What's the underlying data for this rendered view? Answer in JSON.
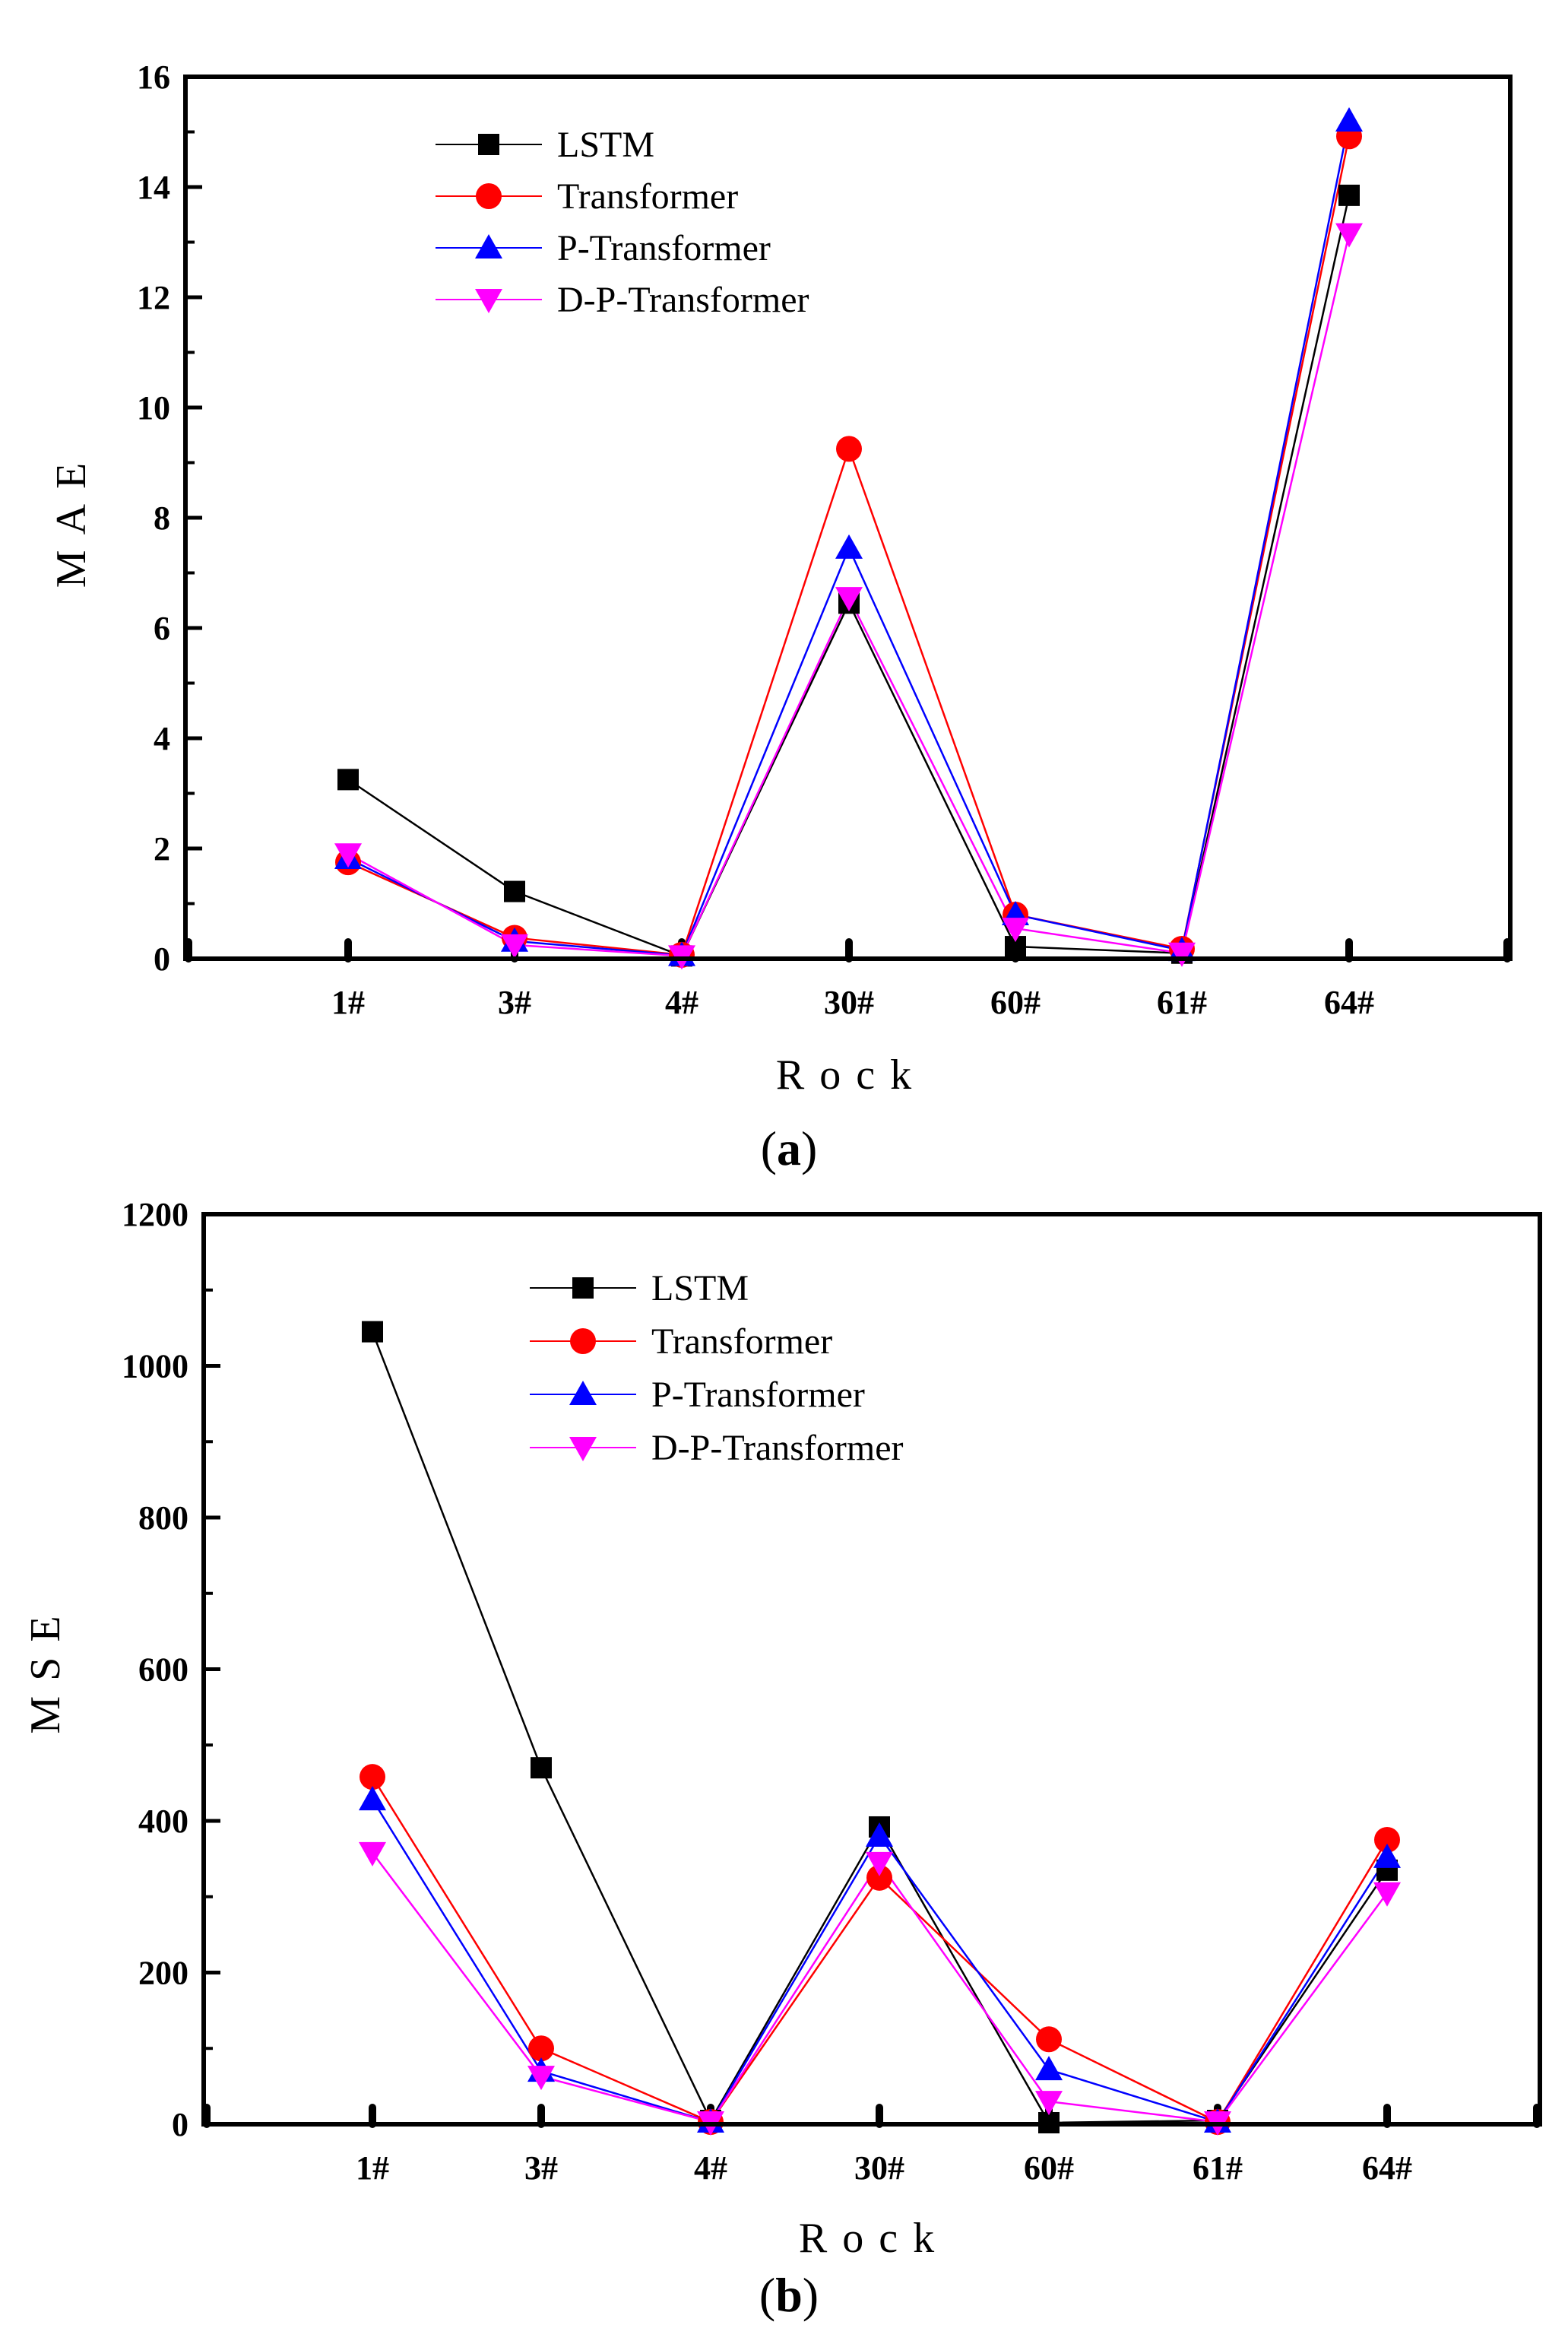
{
  "chart_data": [
    {
      "type": "line",
      "panel_label": "(a)",
      "panel_letter": "a",
      "xlabel": "Rock",
      "ylabel": "MAE",
      "categories": [
        "1#",
        "3#",
        "4#",
        "30#",
        "60#",
        "61#",
        "64#"
      ],
      "ylim": [
        0,
        16
      ],
      "yticks": [
        0,
        2,
        4,
        6,
        8,
        10,
        12,
        14,
        16
      ],
      "legend_position": "top-left",
      "series": [
        {
          "name": "LSTM",
          "color": "#000000",
          "marker": "square",
          "values": [
            3.25,
            1.22,
            0.05,
            6.45,
            0.22,
            0.1,
            13.85
          ]
        },
        {
          "name": "Transformer",
          "color": "#ff0000",
          "marker": "circle",
          "values": [
            1.75,
            0.38,
            0.07,
            9.25,
            0.8,
            0.18,
            14.92
          ]
        },
        {
          "name": "P-Transformer",
          "color": "#0000ff",
          "marker": "triangle-up",
          "values": [
            1.82,
            0.32,
            0.06,
            7.45,
            0.8,
            0.15,
            15.2
          ]
        },
        {
          "name": "D-P-Transformer",
          "color": "#ff00ff",
          "marker": "triangle-down",
          "values": [
            1.9,
            0.25,
            0.05,
            6.55,
            0.55,
            0.1,
            13.15
          ]
        }
      ]
    },
    {
      "type": "line",
      "panel_label": "(b)",
      "panel_letter": "b",
      "xlabel": "Rock",
      "ylabel": "MSE",
      "categories": [
        "1#",
        "3#",
        "4#",
        "30#",
        "60#",
        "61#",
        "64#"
      ],
      "ylim": [
        0,
        1200
      ],
      "yticks": [
        0,
        200,
        400,
        600,
        800,
        1000,
        1200
      ],
      "legend_position": "top-center",
      "series": [
        {
          "name": "LSTM",
          "color": "#000000",
          "marker": "square",
          "values": [
            1045,
            470,
            5,
            392,
            2,
            5,
            335
          ]
        },
        {
          "name": "Transformer",
          "color": "#ff0000",
          "marker": "circle",
          "values": [
            458,
            100,
            3,
            325,
            112,
            3,
            375
          ]
        },
        {
          "name": "P-Transformer",
          "color": "#0000ff",
          "marker": "triangle-up",
          "values": [
            428,
            70,
            3,
            380,
            72,
            3,
            352
          ]
        },
        {
          "name": "D-P-Transformer",
          "color": "#ff00ff",
          "marker": "triangle-down",
          "values": [
            358,
            63,
            3,
            345,
            30,
            3,
            305
          ]
        }
      ]
    }
  ]
}
